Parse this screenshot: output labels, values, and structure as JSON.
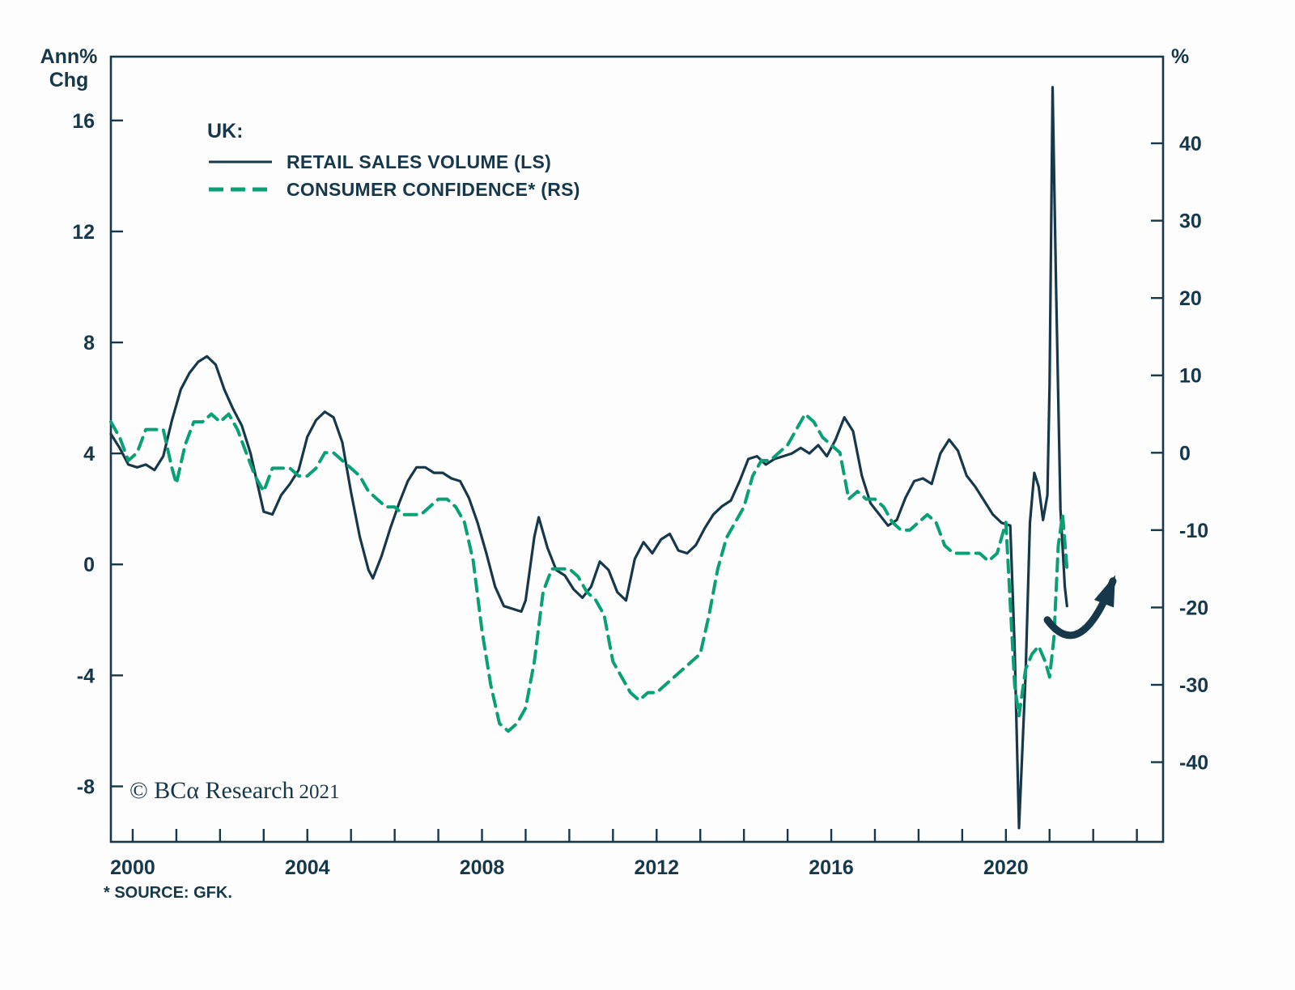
{
  "header": {
    "left_axis_title_line1": "Ann%",
    "left_axis_title_line2": "Chg",
    "right_axis_title": "%"
  },
  "legend": {
    "title": "UK:",
    "entries": [
      {
        "label": "RETAIL SALES VOLUME (LS)",
        "style": "solid",
        "color": "#16384a"
      },
      {
        "label": "CONSUMER CONFIDENCE* (RS)",
        "style": "dashed",
        "color": "#0aa076"
      }
    ]
  },
  "watermark": {
    "copyright": "© BCα Research",
    "year": "2021"
  },
  "footnote": "* SOURCE: GFK.",
  "chart_data": {
    "type": "line",
    "title": "UK: Retail Sales Volume (LS) vs Consumer Confidence (RS)",
    "x_range": [
      1999.5,
      2023.6
    ],
    "x_year_ticks": {
      "start": 2000,
      "end": 2023
    },
    "x_labeled": [
      2000,
      2004,
      2008,
      2012,
      2016,
      2020
    ],
    "left_axis": {
      "label": "Ann% Chg",
      "range": [
        -10,
        18.3
      ],
      "ticks": [
        16,
        12,
        8,
        4,
        0,
        -4,
        -8
      ]
    },
    "right_axis": {
      "label": "%",
      "range": [
        -50.3,
        51.2
      ],
      "ticks": [
        40,
        30,
        20,
        10,
        0,
        -10,
        -20,
        -30,
        -40
      ]
    },
    "frame_color": "#16384a",
    "series": [
      {
        "name": "RETAIL SALES VOLUME (LS)",
        "axis": "left",
        "color": "#16384a",
        "width": 3.2,
        "dash": null,
        "points": [
          [
            1999.5,
            4.7
          ],
          [
            1999.7,
            4.2
          ],
          [
            1999.9,
            3.6
          ],
          [
            2000.1,
            3.5
          ],
          [
            2000.3,
            3.6
          ],
          [
            2000.5,
            3.4
          ],
          [
            2000.7,
            3.9
          ],
          [
            2000.9,
            5.2
          ],
          [
            2001.1,
            6.3
          ],
          [
            2001.3,
            6.9
          ],
          [
            2001.5,
            7.3
          ],
          [
            2001.7,
            7.5
          ],
          [
            2001.9,
            7.2
          ],
          [
            2002.1,
            6.3
          ],
          [
            2002.3,
            5.6
          ],
          [
            2002.5,
            5.0
          ],
          [
            2002.7,
            4.0
          ],
          [
            2002.9,
            2.6
          ],
          [
            2003.0,
            1.9
          ],
          [
            2003.2,
            1.8
          ],
          [
            2003.4,
            2.5
          ],
          [
            2003.6,
            2.9
          ],
          [
            2003.8,
            3.4
          ],
          [
            2004.0,
            4.6
          ],
          [
            2004.2,
            5.2
          ],
          [
            2004.4,
            5.5
          ],
          [
            2004.6,
            5.3
          ],
          [
            2004.8,
            4.4
          ],
          [
            2005.0,
            2.6
          ],
          [
            2005.2,
            1.0
          ],
          [
            2005.4,
            -0.2
          ],
          [
            2005.5,
            -0.5
          ],
          [
            2005.7,
            0.3
          ],
          [
            2005.9,
            1.3
          ],
          [
            2006.1,
            2.2
          ],
          [
            2006.3,
            3.0
          ],
          [
            2006.5,
            3.5
          ],
          [
            2006.7,
            3.5
          ],
          [
            2006.9,
            3.3
          ],
          [
            2007.1,
            3.3
          ],
          [
            2007.3,
            3.1
          ],
          [
            2007.5,
            3.0
          ],
          [
            2007.7,
            2.4
          ],
          [
            2007.9,
            1.5
          ],
          [
            2008.1,
            0.4
          ],
          [
            2008.3,
            -0.8
          ],
          [
            2008.5,
            -1.5
          ],
          [
            2008.7,
            -1.6
          ],
          [
            2008.9,
            -1.7
          ],
          [
            2009.0,
            -1.3
          ],
          [
            2009.2,
            1.0
          ],
          [
            2009.3,
            1.7
          ],
          [
            2009.5,
            0.6
          ],
          [
            2009.7,
            -0.2
          ],
          [
            2009.9,
            -0.4
          ],
          [
            2010.1,
            -0.9
          ],
          [
            2010.3,
            -1.2
          ],
          [
            2010.5,
            -0.8
          ],
          [
            2010.7,
            0.1
          ],
          [
            2010.9,
            -0.2
          ],
          [
            2011.1,
            -1.0
          ],
          [
            2011.3,
            -1.3
          ],
          [
            2011.5,
            0.2
          ],
          [
            2011.7,
            0.8
          ],
          [
            2011.9,
            0.4
          ],
          [
            2012.1,
            0.9
          ],
          [
            2012.3,
            1.1
          ],
          [
            2012.5,
            0.5
          ],
          [
            2012.7,
            0.4
          ],
          [
            2012.9,
            0.7
          ],
          [
            2013.1,
            1.3
          ],
          [
            2013.3,
            1.8
          ],
          [
            2013.5,
            2.1
          ],
          [
            2013.7,
            2.3
          ],
          [
            2013.9,
            3.0
          ],
          [
            2014.1,
            3.8
          ],
          [
            2014.3,
            3.9
          ],
          [
            2014.5,
            3.6
          ],
          [
            2014.7,
            3.8
          ],
          [
            2014.9,
            3.9
          ],
          [
            2015.1,
            4.0
          ],
          [
            2015.3,
            4.2
          ],
          [
            2015.5,
            4.0
          ],
          [
            2015.7,
            4.3
          ],
          [
            2015.9,
            3.9
          ],
          [
            2016.1,
            4.5
          ],
          [
            2016.3,
            5.3
          ],
          [
            2016.5,
            4.8
          ],
          [
            2016.7,
            3.2
          ],
          [
            2016.9,
            2.2
          ],
          [
            2017.1,
            1.8
          ],
          [
            2017.3,
            1.4
          ],
          [
            2017.5,
            1.6
          ],
          [
            2017.7,
            2.4
          ],
          [
            2017.9,
            3.0
          ],
          [
            2018.1,
            3.1
          ],
          [
            2018.3,
            2.9
          ],
          [
            2018.5,
            4.0
          ],
          [
            2018.7,
            4.5
          ],
          [
            2018.9,
            4.1
          ],
          [
            2019.1,
            3.2
          ],
          [
            2019.3,
            2.8
          ],
          [
            2019.5,
            2.3
          ],
          [
            2019.7,
            1.8
          ],
          [
            2019.9,
            1.5
          ],
          [
            2020.1,
            1.4
          ],
          [
            2020.2,
            -3.0
          ],
          [
            2020.3,
            -9.5
          ],
          [
            2020.45,
            -4.0
          ],
          [
            2020.55,
            1.5
          ],
          [
            2020.65,
            3.3
          ],
          [
            2020.75,
            2.8
          ],
          [
            2020.85,
            1.6
          ],
          [
            2020.95,
            2.5
          ],
          [
            2021.0,
            6.5
          ],
          [
            2021.07,
            17.2
          ],
          [
            2021.15,
            10.0
          ],
          [
            2021.25,
            2.0
          ],
          [
            2021.35,
            -0.8
          ],
          [
            2021.4,
            -1.5
          ]
        ]
      },
      {
        "name": "CONSUMER CONFIDENCE* (RS)",
        "axis": "right",
        "color": "#0aa076",
        "width": 4,
        "dash": [
          15,
          9
        ],
        "points": [
          [
            1999.5,
            4
          ],
          [
            1999.7,
            2
          ],
          [
            1999.9,
            -1
          ],
          [
            2000.1,
            0
          ],
          [
            2000.3,
            3
          ],
          [
            2000.5,
            3
          ],
          [
            2000.7,
            3
          ],
          [
            2000.9,
            -2
          ],
          [
            2001.0,
            -4
          ],
          [
            2001.2,
            1
          ],
          [
            2001.4,
            4
          ],
          [
            2001.6,
            4
          ],
          [
            2001.8,
            5
          ],
          [
            2002.0,
            4
          ],
          [
            2002.2,
            5
          ],
          [
            2002.4,
            3
          ],
          [
            2002.6,
            0
          ],
          [
            2002.8,
            -3
          ],
          [
            2003.0,
            -5
          ],
          [
            2003.2,
            -2
          ],
          [
            2003.4,
            -2
          ],
          [
            2003.6,
            -2
          ],
          [
            2003.8,
            -3
          ],
          [
            2004.0,
            -3
          ],
          [
            2004.2,
            -2
          ],
          [
            2004.4,
            0
          ],
          [
            2004.6,
            0
          ],
          [
            2004.8,
            -1
          ],
          [
            2005.0,
            -2
          ],
          [
            2005.2,
            -3
          ],
          [
            2005.4,
            -5
          ],
          [
            2005.6,
            -6
          ],
          [
            2005.8,
            -7
          ],
          [
            2006.0,
            -7
          ],
          [
            2006.2,
            -8
          ],
          [
            2006.4,
            -8
          ],
          [
            2006.6,
            -8
          ],
          [
            2006.8,
            -7
          ],
          [
            2007.0,
            -6
          ],
          [
            2007.2,
            -6
          ],
          [
            2007.4,
            -7
          ],
          [
            2007.6,
            -9
          ],
          [
            2007.8,
            -14
          ],
          [
            2008.0,
            -23
          ],
          [
            2008.2,
            -30
          ],
          [
            2008.4,
            -35
          ],
          [
            2008.6,
            -36
          ],
          [
            2008.8,
            -35
          ],
          [
            2009.0,
            -33
          ],
          [
            2009.2,
            -27
          ],
          [
            2009.4,
            -18
          ],
          [
            2009.6,
            -15
          ],
          [
            2009.8,
            -15
          ],
          [
            2010.0,
            -15
          ],
          [
            2010.2,
            -16
          ],
          [
            2010.4,
            -18
          ],
          [
            2010.6,
            -19
          ],
          [
            2010.8,
            -21
          ],
          [
            2011.0,
            -27
          ],
          [
            2011.2,
            -29
          ],
          [
            2011.4,
            -31
          ],
          [
            2011.6,
            -32
          ],
          [
            2011.8,
            -31
          ],
          [
            2012.0,
            -31
          ],
          [
            2012.2,
            -30
          ],
          [
            2012.4,
            -29
          ],
          [
            2012.6,
            -28
          ],
          [
            2012.8,
            -27
          ],
          [
            2013.0,
            -26
          ],
          [
            2013.2,
            -21
          ],
          [
            2013.4,
            -15
          ],
          [
            2013.6,
            -11
          ],
          [
            2013.8,
            -9
          ],
          [
            2014.0,
            -7
          ],
          [
            2014.2,
            -3
          ],
          [
            2014.4,
            -1
          ],
          [
            2014.6,
            -1
          ],
          [
            2014.8,
            0
          ],
          [
            2015.0,
            1
          ],
          [
            2015.2,
            3
          ],
          [
            2015.4,
            5
          ],
          [
            2015.6,
            4
          ],
          [
            2015.8,
            2
          ],
          [
            2016.0,
            1
          ],
          [
            2016.2,
            0
          ],
          [
            2016.4,
            -6
          ],
          [
            2016.6,
            -5
          ],
          [
            2016.8,
            -6
          ],
          [
            2017.0,
            -6
          ],
          [
            2017.2,
            -7
          ],
          [
            2017.4,
            -9
          ],
          [
            2017.6,
            -10
          ],
          [
            2017.8,
            -10
          ],
          [
            2018.0,
            -9
          ],
          [
            2018.2,
            -8
          ],
          [
            2018.4,
            -9
          ],
          [
            2018.6,
            -12
          ],
          [
            2018.8,
            -13
          ],
          [
            2019.0,
            -13
          ],
          [
            2019.2,
            -13
          ],
          [
            2019.4,
            -13
          ],
          [
            2019.6,
            -14
          ],
          [
            2019.8,
            -13
          ],
          [
            2020.0,
            -9
          ],
          [
            2020.2,
            -30
          ],
          [
            2020.3,
            -34
          ],
          [
            2020.45,
            -28
          ],
          [
            2020.6,
            -26
          ],
          [
            2020.75,
            -25
          ],
          [
            2020.9,
            -27
          ],
          [
            2021.0,
            -29
          ],
          [
            2021.1,
            -24
          ],
          [
            2021.2,
            -12
          ],
          [
            2021.3,
            -8
          ],
          [
            2021.4,
            -15
          ]
        ]
      }
    ],
    "annotations": [
      {
        "type": "curved-arrow",
        "axis": "left",
        "color": "#16384a",
        "from": [
          2020.95,
          -2.0
        ],
        "control": [
          2021.7,
          -3.6
        ],
        "to": [
          2022.45,
          -0.6
        ]
      }
    ]
  }
}
